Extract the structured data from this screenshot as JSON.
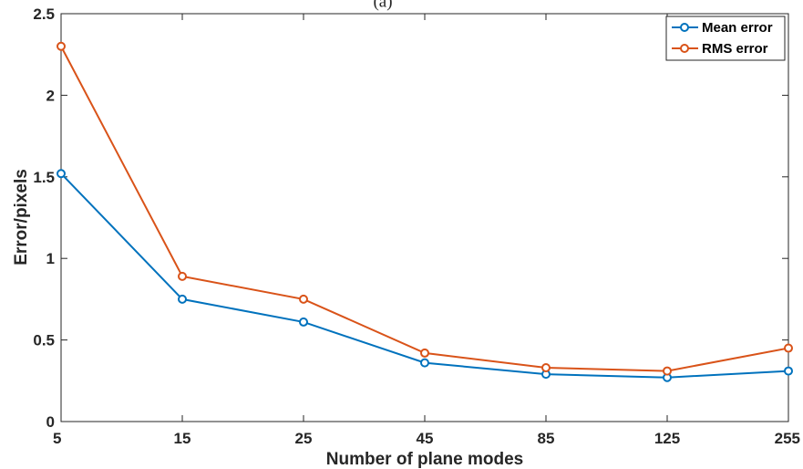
{
  "title": "(a)",
  "chart_data": {
    "type": "line",
    "categories": [
      "5",
      "15",
      "25",
      "45",
      "85",
      "125",
      "255"
    ],
    "series": [
      {
        "name": "Mean error",
        "color": "#0072BD",
        "values": [
          1.52,
          0.75,
          0.61,
          0.36,
          0.29,
          0.27,
          0.31
        ]
      },
      {
        "name": "RMS error",
        "color": "#D95319",
        "values": [
          2.3,
          0.89,
          0.75,
          0.42,
          0.33,
          0.31,
          0.45
        ]
      }
    ],
    "xlabel": "Number of plane modes",
    "ylabel": "Error/pixels",
    "ylim": [
      0,
      2.5
    ],
    "yticks": [
      "0",
      "0.5",
      "1",
      "1.5",
      "2",
      "2.5"
    ],
    "grid": false,
    "legend": "top-right",
    "marker": "circle"
  }
}
